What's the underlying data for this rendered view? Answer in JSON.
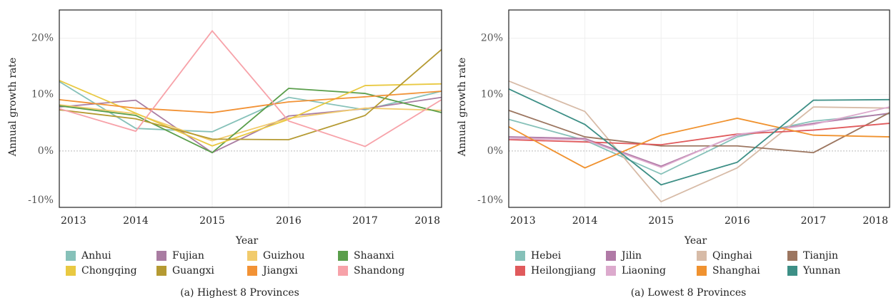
{
  "chart_data": [
    {
      "type": "line",
      "caption": "(a) Highest 8 Provinces",
      "xlabel": "Year",
      "ylabel": "Annual growth rate",
      "x": [
        2013,
        2014,
        2015,
        2016,
        2017,
        2018
      ],
      "xlim": [
        2013,
        2018
      ],
      "xticks": [
        2013,
        2014,
        2015,
        2016,
        2017,
        2018
      ],
      "ylim": [
        -10,
        25
      ],
      "yticks": [
        {
          "value": -10,
          "label": "-10%"
        },
        {
          "value": 0,
          "label": "0%"
        },
        {
          "value": 10,
          "label": "10%"
        },
        {
          "value": 20,
          "label": "20%"
        }
      ],
      "grid": true,
      "series": [
        {
          "name": "Anhui",
          "color": "#86c1b9",
          "values": [
            12.3,
            4.0,
            3.4,
            9.5,
            7.3,
            10.6
          ]
        },
        {
          "name": "Fujian",
          "color": "#a97ca2",
          "values": [
            7.8,
            9.0,
            -0.3,
            6.2,
            7.5,
            9.5
          ]
        },
        {
          "name": "Guizhou",
          "color": "#f1cb6c",
          "values": [
            8.2,
            6.6,
            1.8,
            5.8,
            7.6,
            7.2
          ]
        },
        {
          "name": "Shaanxi",
          "color": "#5a9e4b",
          "values": [
            8.0,
            6.3,
            -0.3,
            11.1,
            10.2,
            6.8
          ]
        },
        {
          "name": "Chongqing",
          "color": "#e9c942",
          "values": [
            12.5,
            6.7,
            0.9,
            5.6,
            11.6,
            11.9
          ]
        },
        {
          "name": "Guangxi",
          "color": "#b59a32",
          "values": [
            7.3,
            5.7,
            2.1,
            2.0,
            6.3,
            18.0
          ]
        },
        {
          "name": "Jiangxi",
          "color": "#f29235",
          "values": [
            9.1,
            7.6,
            6.8,
            8.7,
            9.6,
            10.6
          ]
        },
        {
          "name": "Shandong",
          "color": "#f7a2a9",
          "values": [
            7.5,
            3.5,
            21.3,
            5.3,
            0.8,
            9.1
          ]
        }
      ]
    },
    {
      "type": "line",
      "caption": "(a) Lowest 8 Provinces",
      "xlabel": "Year",
      "ylabel": "Annual growth rate",
      "x": [
        2013,
        2014,
        2015,
        2016,
        2017,
        2018
      ],
      "xlim": [
        2013,
        2018
      ],
      "xticks": [
        2013,
        2014,
        2015,
        2016,
        2017,
        2018
      ],
      "ylim": [
        -10,
        25
      ],
      "yticks": [
        {
          "value": -10,
          "label": "-10%"
        },
        {
          "value": 0,
          "label": "0%"
        },
        {
          "value": 10,
          "label": "10%"
        },
        {
          "value": 20,
          "label": "20%"
        }
      ],
      "grid": true,
      "series": [
        {
          "name": "Hebei",
          "color": "#86c1b9",
          "values": [
            5.6,
            1.9,
            -4.1,
            2.5,
            5.3,
            6.6
          ]
        },
        {
          "name": "Jilin",
          "color": "#b07aa6",
          "values": [
            2.5,
            2.2,
            -2.7,
            2.8,
            4.9,
            6.7
          ]
        },
        {
          "name": "Qinghai",
          "color": "#d7bba7",
          "values": [
            12.4,
            7.0,
            -9.0,
            -3.0,
            7.8,
            7.6
          ]
        },
        {
          "name": "Tianjin",
          "color": "#9c7660",
          "values": [
            7.2,
            2.5,
            0.9,
            0.9,
            -0.3,
            6.8
          ]
        },
        {
          "name": "Heilongjiang",
          "color": "#e05a5c",
          "values": [
            2.0,
            1.6,
            1.1,
            3.0,
            3.7,
            4.9
          ]
        },
        {
          "name": "Liaoning",
          "color": "#dcaacd",
          "values": [
            2.2,
            2.0,
            -2.9,
            2.9,
            4.7,
            7.8
          ]
        },
        {
          "name": "Shanghai",
          "color": "#f0922f",
          "values": [
            4.3,
            -3.0,
            2.8,
            5.8,
            2.8,
            2.5
          ]
        },
        {
          "name": "Yunnan",
          "color": "#3d8f86",
          "values": [
            11.0,
            4.7,
            -6.0,
            -2.0,
            9.0,
            9.1
          ]
        }
      ]
    }
  ]
}
